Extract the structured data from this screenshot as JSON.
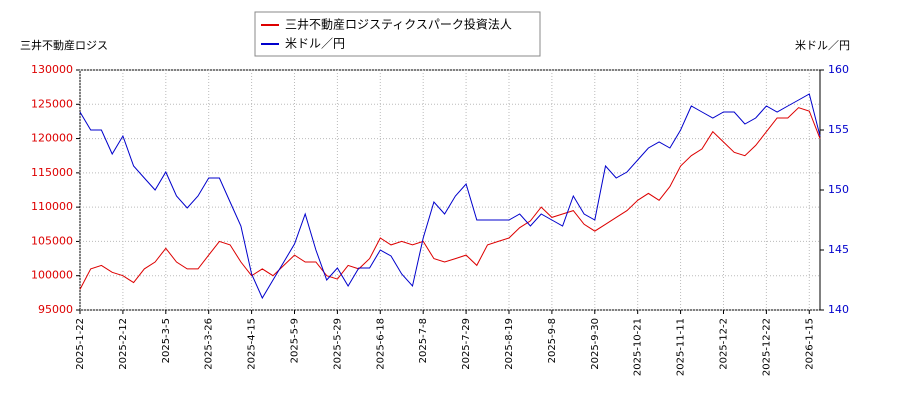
{
  "chart_data": {
    "type": "line",
    "left_axis_label": "三井不動産ロジス",
    "right_axis_label": "米ドル／円",
    "x": [
      "2025-1-22",
      "2025-1-28",
      "2025-2-3",
      "2025-2-6",
      "2025-2-12",
      "2025-2-18",
      "2025-2-21",
      "2025-2-28",
      "2025-3-5",
      "2025-3-11",
      "2025-3-14",
      "2025-3-19",
      "2025-3-26",
      "2025-4-1",
      "2025-4-4",
      "2025-4-10",
      "2025-4-15",
      "2025-4-21",
      "2025-4-25",
      "2025-5-1",
      "2025-5-9",
      "2025-5-15",
      "2025-5-20",
      "2025-5-23",
      "2025-5-29",
      "2025-6-4",
      "2025-6-9",
      "2025-6-12",
      "2025-6-18",
      "2025-6-24",
      "2025-6-27",
      "2025-7-3",
      "2025-7-8",
      "2025-7-14",
      "2025-7-17",
      "2025-7-23",
      "2025-7-29",
      "2025-8-4",
      "2025-8-7",
      "2025-8-13",
      "2025-8-19",
      "2025-8-25",
      "2025-8-28",
      "2025-9-3",
      "2025-9-8",
      "2025-9-12",
      "2025-9-18",
      "2025-9-24",
      "2025-9-30",
      "2025-10-6",
      "2025-10-10",
      "2025-10-16",
      "2025-10-21",
      "2025-10-27",
      "2025-10-30",
      "2025-11-5",
      "2025-11-11",
      "2025-11-17",
      "2025-11-20",
      "2025-11-26",
      "2025-12-2",
      "2025-12-8",
      "2025-12-11",
      "2025-12-17",
      "2025-12-22",
      "2025-12-26",
      "2026-1-6",
      "2026-1-9",
      "2026-1-15",
      "2026-1-20"
    ],
    "xticks": [
      "2025-1-22",
      "2025-2-12",
      "2025-3-5",
      "2025-3-26",
      "2025-4-15",
      "2025-5-9",
      "2025-5-29",
      "2025-6-18",
      "2025-7-8",
      "2025-7-29",
      "2025-8-19",
      "2025-9-8",
      "2025-9-30",
      "2025-10-21",
      "2025-11-11",
      "2025-12-2",
      "2025-12-22",
      "2026-1-15"
    ],
    "series": [
      {
        "name": "三井不動産ロジスティクスパーク投資法人",
        "color": "#dd0000",
        "axis": "y",
        "values": [
          98000,
          101000,
          101500,
          100500,
          100000,
          99000,
          101000,
          102000,
          104000,
          102000,
          101000,
          101000,
          103000,
          105000,
          104500,
          102000,
          100000,
          101000,
          100000,
          101500,
          103000,
          102000,
          102000,
          100000,
          99500,
          101500,
          101000,
          102500,
          105500,
          104500,
          105000,
          104500,
          105000,
          102500,
          102000,
          102500,
          103000,
          101500,
          104500,
          105000,
          105500,
          107000,
          108000,
          110000,
          108500,
          109000,
          109500,
          107500,
          106500,
          107500,
          108500,
          109500,
          111000,
          112000,
          111000,
          113000,
          116000,
          117500,
          118500,
          121000,
          119500,
          118000,
          117500,
          119000,
          121000,
          123000,
          123000,
          124500,
          124000,
          120000
        ]
      },
      {
        "name": "米ドル／円",
        "color": "#0000cc",
        "axis": "y2",
        "values": [
          156.5,
          155,
          155,
          153,
          154.5,
          152,
          151,
          150,
          151.5,
          149.5,
          148.5,
          149.5,
          151,
          151,
          149,
          147,
          143,
          141,
          142.5,
          144,
          145.5,
          148,
          145,
          142.5,
          143.5,
          142,
          143.5,
          143.5,
          145,
          144.5,
          143,
          142,
          146,
          149,
          148,
          149.5,
          150.5,
          147.5,
          147.5,
          147.5,
          147.5,
          148,
          147,
          148,
          147.5,
          147,
          149.5,
          148,
          147.5,
          152,
          151,
          151.5,
          152.5,
          153.5,
          154,
          153.5,
          155,
          157,
          156.5,
          156,
          156.5,
          156.5,
          155.5,
          156,
          157,
          156.5,
          157,
          157.5,
          158,
          154.5
        ]
      }
    ],
    "ylim": [
      95000,
      130000
    ],
    "yticks": [
      95000,
      100000,
      105000,
      110000,
      115000,
      120000,
      125000,
      130000
    ],
    "ytick_color": "#dd0000",
    "y2lim": [
      140,
      160
    ],
    "y2ticks": [
      140,
      145,
      150,
      155,
      160
    ],
    "y2tick_color": "#0000cc",
    "grid": true,
    "legend": "top"
  }
}
